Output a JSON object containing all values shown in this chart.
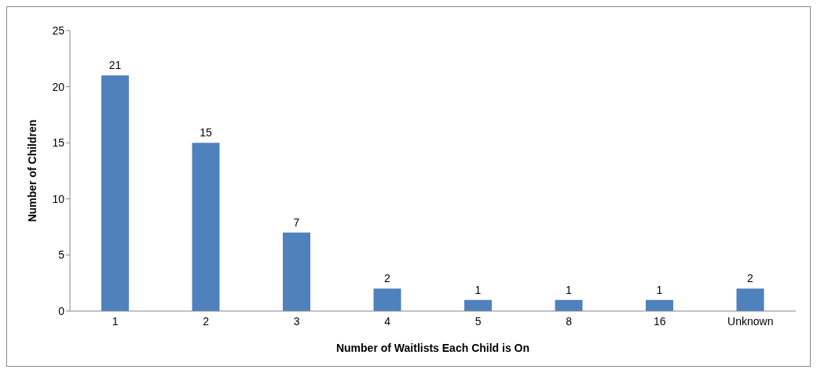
{
  "chart_data": {
    "type": "bar",
    "xlabel": "Number of Waitlists Each Child is On",
    "ylabel": "Number of Children",
    "categories": [
      "1",
      "2",
      "3",
      "4",
      "5",
      "8",
      "16",
      "Unknown"
    ],
    "values": [
      21,
      15,
      7,
      2,
      1,
      1,
      1,
      2
    ],
    "color": "#4f81bd",
    "ylim": [
      0,
      25
    ],
    "yticks": [
      0,
      5,
      10,
      15,
      20,
      25
    ],
    "grid": false,
    "legend": false,
    "data_labels": true
  }
}
